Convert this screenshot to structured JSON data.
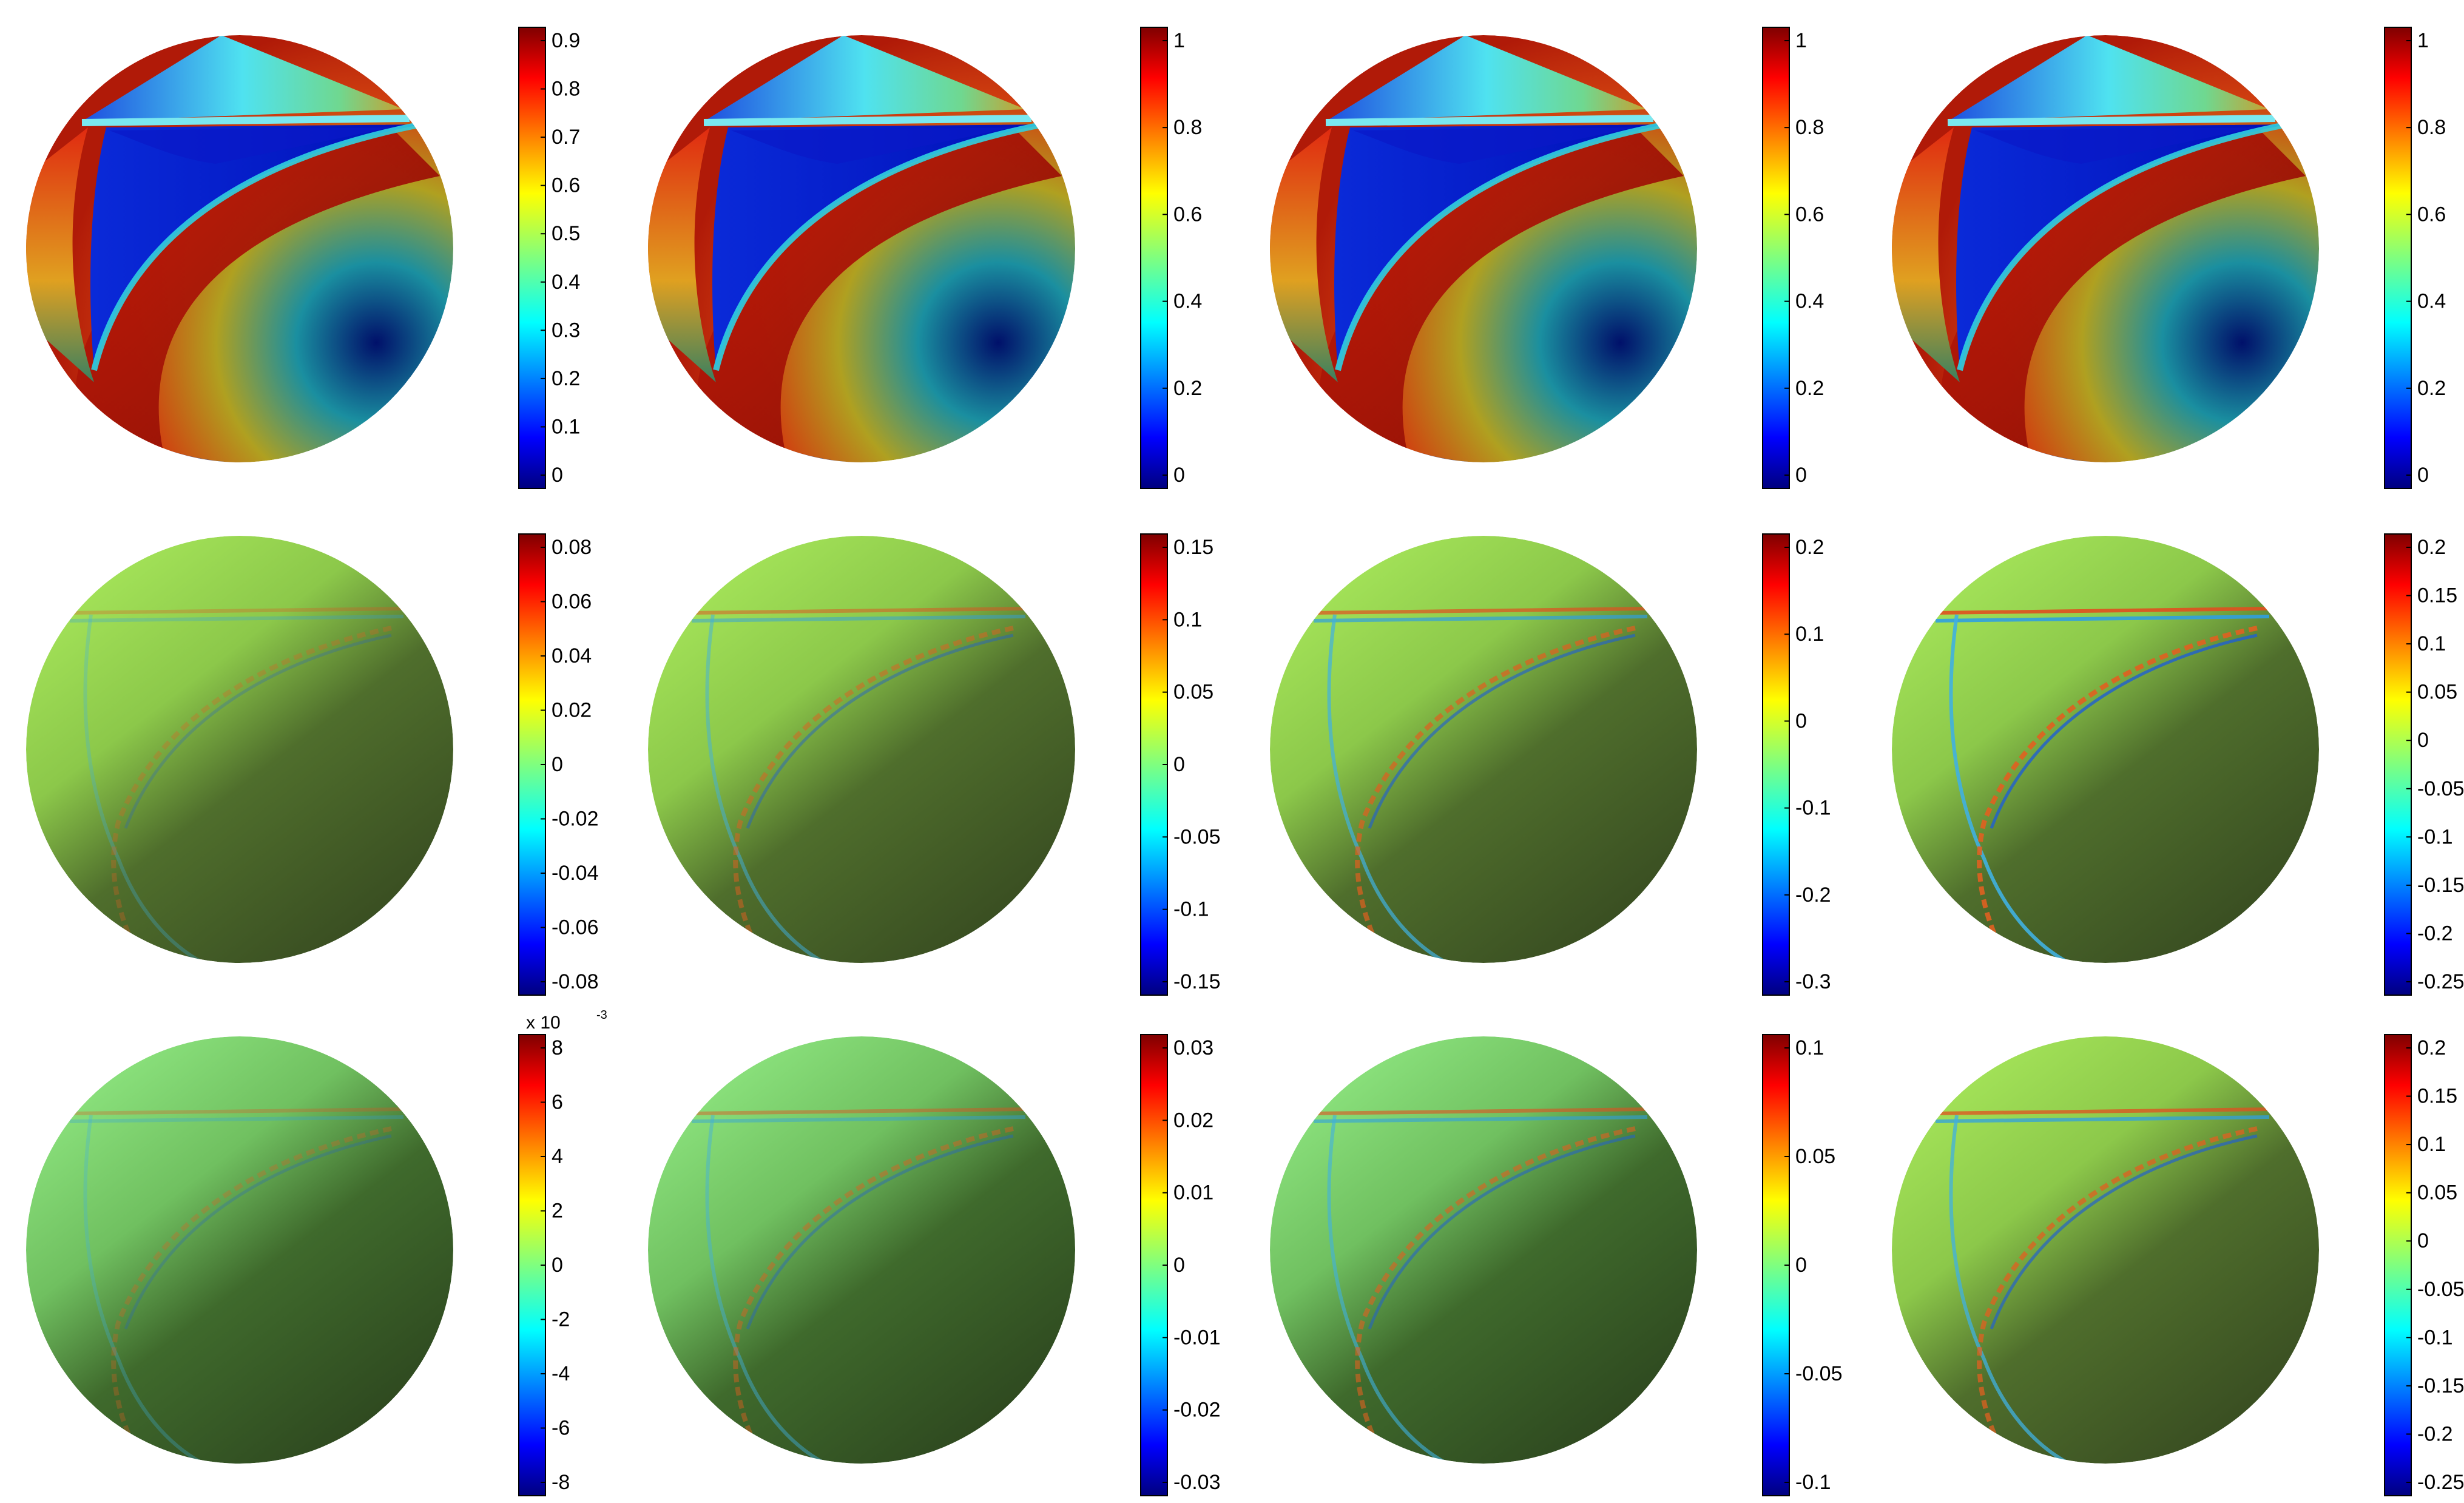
{
  "figure": {
    "rows": [
      {
        "panels": [
          {
            "field": "solution",
            "colorbar": {
              "ticks": [
                "0.9",
                "0.8",
                "0.7",
                "0.6",
                "0.5",
                "0.4",
                "0.3",
                "0.2",
                "0.1",
                "0"
              ],
              "multiplier": ""
            }
          },
          {
            "field": "solution",
            "colorbar": {
              "ticks": [
                "1",
                "0.8",
                "0.6",
                "0.4",
                "0.2",
                "0"
              ],
              "multiplier": ""
            }
          },
          {
            "field": "solution",
            "colorbar": {
              "ticks": [
                "1",
                "0.8",
                "0.6",
                "0.4",
                "0.2",
                "0"
              ],
              "multiplier": ""
            }
          },
          {
            "field": "solution",
            "colorbar": {
              "ticks": [
                "1",
                "0.8",
                "0.6",
                "0.4",
                "0.2",
                "0"
              ],
              "multiplier": ""
            }
          }
        ]
      },
      {
        "panels": [
          {
            "field": "difference",
            "colorbar": {
              "ticks": [
                "0.08",
                "0.06",
                "0.04",
                "0.02",
                "0",
                "-0.02",
                "-0.04",
                "-0.06",
                "-0.08"
              ],
              "multiplier": ""
            }
          },
          {
            "field": "difference",
            "colorbar": {
              "ticks": [
                "0.15",
                "0.1",
                "0.05",
                "0",
                "-0.05",
                "-0.1",
                "-0.15"
              ],
              "multiplier": ""
            }
          },
          {
            "field": "difference",
            "colorbar": {
              "ticks": [
                "0.2",
                "0.1",
                "0",
                "-0.1",
                "-0.2",
                "-0.3"
              ],
              "multiplier": ""
            }
          },
          {
            "field": "difference",
            "colorbar": {
              "ticks": [
                "0.2",
                "0.15",
                "0.1",
                "0.05",
                "0",
                "-0.05",
                "-0.1",
                "-0.15",
                "-0.2",
                "-0.25"
              ],
              "multiplier": ""
            }
          }
        ]
      },
      {
        "panels": [
          {
            "field": "difference",
            "colorbar": {
              "ticks": [
                "8",
                "6",
                "4",
                "2",
                "0",
                "-2",
                "-4",
                "-6",
                "-8"
              ],
              "multiplier": "x 10",
              "multiplier_exp": "-3"
            }
          },
          {
            "field": "difference",
            "colorbar": {
              "ticks": [
                "0.03",
                "0.02",
                "0.01",
                "0",
                "-0.01",
                "-0.02",
                "-0.03"
              ],
              "multiplier": ""
            }
          },
          {
            "field": "difference",
            "colorbar": {
              "ticks": [
                "0.1",
                "0.05",
                "0",
                "-0.05",
                "-0.1"
              ],
              "multiplier": ""
            }
          },
          {
            "field": "difference",
            "colorbar": {
              "ticks": [
                "0.2",
                "0.15",
                "0.1",
                "0.05",
                "0",
                "-0.05",
                "-0.1",
                "-0.15",
                "-0.2",
                "-0.25"
              ],
              "multiplier": ""
            }
          }
        ]
      }
    ],
    "colors": {
      "jet": [
        "#00007f",
        "#0000ff",
        "#007fff",
        "#00ffff",
        "#7fff7f",
        "#ffff00",
        "#ff7f00",
        "#ff0000",
        "#7f0000"
      ],
      "sphere_green_light": "#a6e65a",
      "sphere_green_mid": "#6f9a3a",
      "sphere_green_dark": "#3a4f22"
    }
  }
}
